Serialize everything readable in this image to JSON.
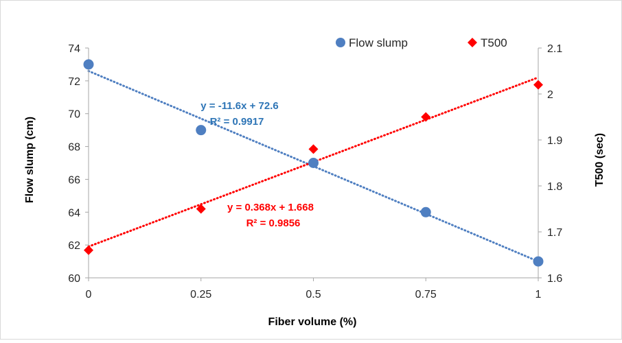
{
  "chart_data": {
    "type": "scatter",
    "xlabel": "Fiber volume (%)",
    "ylabel_left": "Flow slump (cm)",
    "ylabel_right": "T500 (sec)",
    "xlim": [
      0,
      1
    ],
    "ylim_left": [
      60,
      74
    ],
    "ylim_right": [
      1.6,
      2.1
    ],
    "x_ticks": [
      "0",
      "0.25",
      "0.5",
      "0.75",
      "1"
    ],
    "y_ticks_left": [
      "60",
      "62",
      "64",
      "66",
      "68",
      "70",
      "72",
      "74"
    ],
    "y_ticks_right": [
      "1.6",
      "1.7",
      "1.8",
      "1.9",
      "2",
      "2.1"
    ],
    "grid": false,
    "legend_position": "top-right",
    "series": [
      {
        "name": "Flow slump",
        "axis": "left",
        "marker": "circle",
        "color": "#4F7FC1",
        "x": [
          0,
          0.25,
          0.5,
          0.75,
          1
        ],
        "y": [
          73,
          69,
          67,
          64,
          61
        ],
        "trendline": {
          "slope": -11.6,
          "intercept": 72.6,
          "equation": "y = -11.6x + 72.6",
          "r2": "R² = 0.9917",
          "color": "#4F7FC1",
          "label_color": "#2E75B6"
        }
      },
      {
        "name": "T500",
        "axis": "right",
        "marker": "diamond",
        "color": "#FF0000",
        "x": [
          0,
          0.25,
          0.5,
          0.75,
          1
        ],
        "y": [
          1.66,
          1.75,
          1.88,
          1.95,
          2.02
        ],
        "trendline": {
          "slope": 0.368,
          "intercept": 1.668,
          "equation": "y = 0.368x + 1.668",
          "r2": "R² = 0.9856",
          "color": "#FF0000",
          "label_color": "#FF0000"
        }
      }
    ]
  }
}
